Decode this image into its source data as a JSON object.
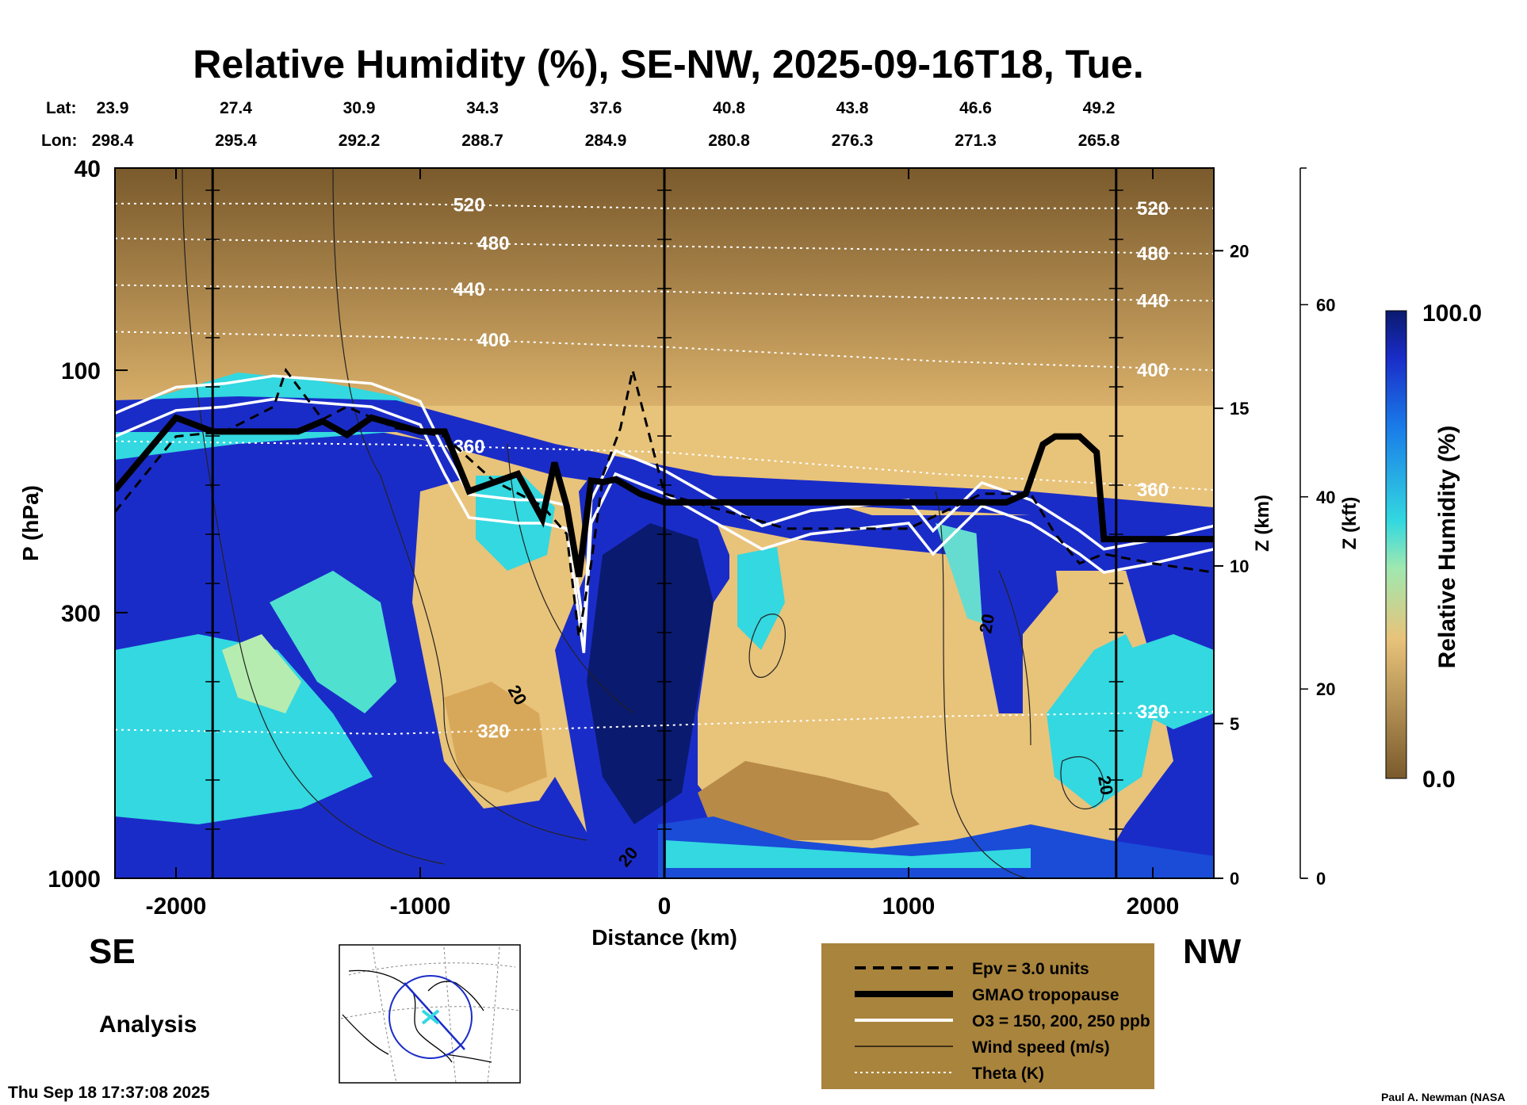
{
  "chart_data": {
    "type": "heatmap",
    "title": "Relative Humidity (%), SE-NW, 2025-09-16T18, Tue.",
    "lat_label": "Lat:",
    "lon_label": "Lon:",
    "lat_ticks": [
      "23.9",
      "27.4",
      "30.9",
      "34.3",
      "37.6",
      "40.8",
      "43.8",
      "46.6",
      "49.2"
    ],
    "lon_ticks": [
      "298.4",
      "295.4",
      "292.2",
      "288.7",
      "284.9",
      "280.8",
      "276.3",
      "271.3",
      "265.8"
    ],
    "xlabel": "Distance (km)",
    "ylabel": "P (hPa)",
    "xlim": [
      -2250,
      2250
    ],
    "ylim": [
      1000,
      40
    ],
    "x_ticks": [
      -2000,
      -1000,
      0,
      1000,
      2000
    ],
    "x_tick_labels": [
      "-2000",
      "-1000",
      "0",
      "1000",
      "2000"
    ],
    "y_ticks": [
      40,
      100,
      300,
      1000
    ],
    "y_tick_labels": [
      "40",
      "100",
      "300",
      "1000"
    ],
    "z_km_label": "Z (km)",
    "z_km_ticks": [
      0,
      5,
      10,
      15,
      20
    ],
    "z_km_tick_labels": [
      "0",
      "5",
      "10",
      "15",
      "20"
    ],
    "z_kft_label": "Z (kft)",
    "z_kft_ticks": [
      0,
      20,
      40,
      60
    ],
    "z_kft_tick_labels": [
      "0",
      "20",
      "40",
      "60"
    ],
    "colorbar": {
      "label": "Relative Humidity (%)",
      "min_label": "0.0",
      "max_label": "100.0",
      "min": 0,
      "max": 100
    },
    "side_left": "SE",
    "side_right": "NW",
    "vertical_markers_km": [
      -1850,
      0,
      1850
    ],
    "theta_contours": [
      {
        "label": "520",
        "pressure": [
          47,
          47,
          48,
          48,
          48
        ]
      },
      {
        "label": "480",
        "pressure": [
          55,
          56,
          57,
          58,
          59
        ]
      },
      {
        "label": "440",
        "pressure": [
          68,
          69,
          70,
          72,
          73
        ]
      },
      {
        "label": "400",
        "pressure": [
          84,
          86,
          90,
          96,
          100
        ]
      },
      {
        "label": "360",
        "pressure": [
          138,
          140,
          145,
          160,
          172
        ]
      },
      {
        "label": "320",
        "pressure": [
          510,
          520,
          500,
          480,
          470
        ]
      }
    ],
    "wind_contour_label": "20",
    "series": [
      {
        "name": "GMAO tropopause",
        "x": [
          -2250,
          -2000,
          -1850,
          -1500,
          -1400,
          -1300,
          -1200,
          -1000,
          -900,
          -800,
          -600,
          -500,
          -450,
          -400,
          -350,
          -300,
          -250,
          -200,
          -100,
          0,
          500,
          1000,
          1400,
          1480,
          1550,
          1600,
          1700,
          1770,
          1800,
          1850,
          2250
        ],
        "pressure": [
          172,
          124,
          132,
          132,
          126,
          134,
          124,
          132,
          132,
          173,
          160,
          196,
          152,
          185,
          255,
          165,
          166,
          164,
          175,
          182,
          182,
          182,
          182,
          175,
          140,
          135,
          135,
          145,
          215,
          215,
          215
        ]
      },
      {
        "name": "Epv = 3.0 units",
        "x": [
          -2250,
          -2000,
          -1800,
          -1600,
          -1550,
          -1400,
          -1300,
          -1100,
          -900,
          -700,
          -500,
          -400,
          -350,
          -300,
          -250,
          -180,
          -130,
          0,
          500,
          1000,
          1300,
          1500,
          1600,
          1700,
          1800,
          2000,
          2250
        ],
        "pressure": [
          190,
          135,
          132,
          118,
          100,
          125,
          118,
          130,
          135,
          165,
          185,
          210,
          335,
          240,
          160,
          130,
          100,
          175,
          205,
          205,
          175,
          175,
          210,
          240,
          230,
          240,
          250
        ]
      },
      {
        "name": "O3 = 150, 200, 250 ppb",
        "x": [
          -2250,
          -2000,
          -1800,
          -1600,
          -1400,
          -1200,
          -1000,
          -900,
          -800,
          -600,
          -500,
          -400,
          -330,
          -300,
          -200,
          0,
          400,
          600,
          1000,
          1100,
          1300,
          1500,
          1700,
          1800,
          2000,
          2250
        ],
        "pressure": [
          135,
          120,
          118,
          114,
          116,
          118,
          128,
          160,
          195,
          200,
          200,
          205,
          360,
          200,
          160,
          175,
          225,
          210,
          200,
          230,
          185,
          200,
          230,
          250,
          240,
          225
        ]
      }
    ],
    "legend": [
      {
        "label": "Epv = 3.0 units",
        "style": "dashed"
      },
      {
        "label": "GMAO tropopause",
        "style": "thick"
      },
      {
        "label": "O3 = 150, 200, 250 ppb",
        "style": "white"
      },
      {
        "label": "Wind speed (m/s)",
        "style": "thin"
      },
      {
        "label": "Theta (K)",
        "style": "dotted"
      }
    ]
  },
  "footer": {
    "analysis": "Analysis",
    "timestamp": "Thu Sep 18 17:37:08 2025",
    "credit": "Paul A. Newman (NASA"
  },
  "colors": {
    "dry": "#7a5a2c",
    "mid": "#e8c37a",
    "moist_cyan": "#33d8e0",
    "moist_blue": "#1a2cc8",
    "wet": "#0a1a6e",
    "legend_bg": "#a9843d"
  }
}
